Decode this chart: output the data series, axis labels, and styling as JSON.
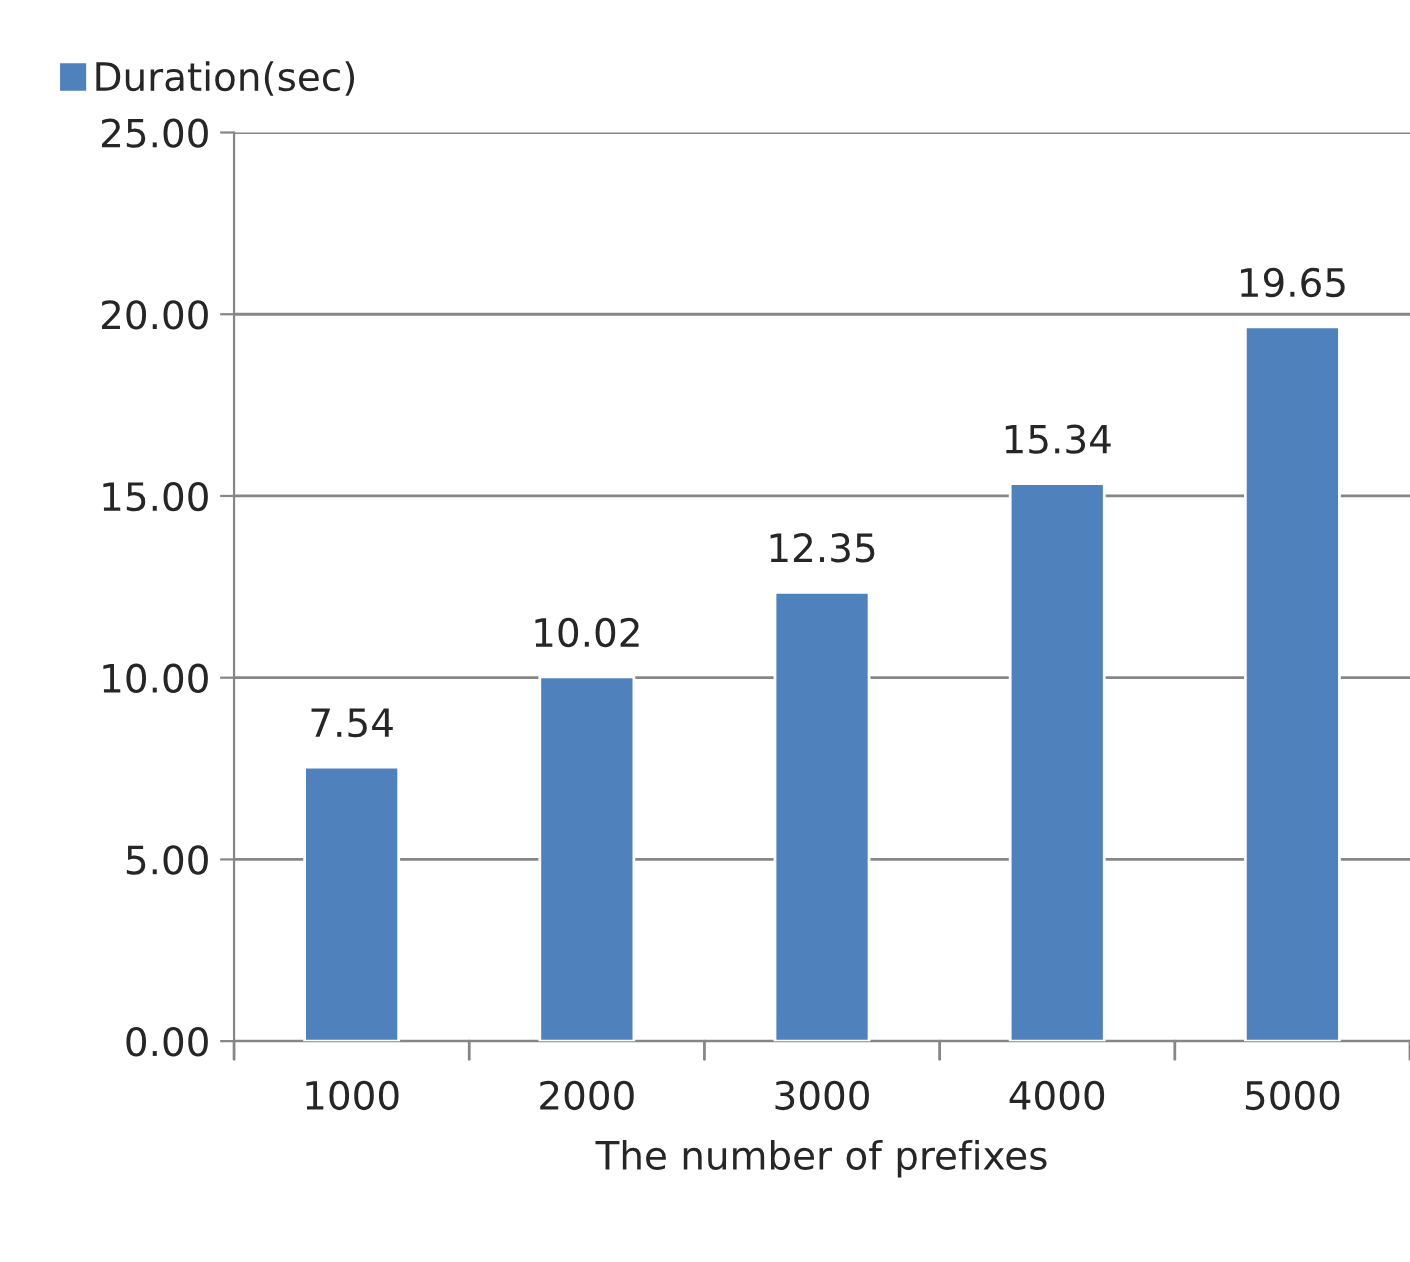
{
  "chart_data": {
    "type": "bar",
    "xlabel": "The number of prefixes",
    "categories": [
      "1000",
      "2000",
      "3000",
      "4000",
      "5000"
    ],
    "series": [
      {
        "name": "Duration(sec)",
        "color": "#4f81bd",
        "values": [
          7.54,
          10.02,
          12.35,
          15.34,
          19.65
        ]
      }
    ],
    "ylim": [
      0,
      25
    ],
    "yticks": [
      {
        "value": 0,
        "label": "0.00"
      },
      {
        "value": 5,
        "label": "5.00"
      },
      {
        "value": 10,
        "label": "10.00"
      },
      {
        "value": 15,
        "label": "15.00"
      },
      {
        "value": 20,
        "label": "20.00"
      },
      {
        "value": 25,
        "label": "25.00"
      }
    ],
    "grid": "y",
    "legend": "top left",
    "data_labels": true
  }
}
